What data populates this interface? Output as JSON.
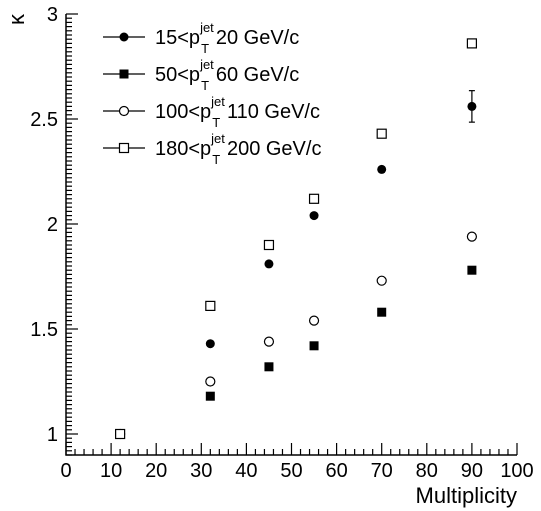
{
  "chart_data": {
    "type": "scatter",
    "xlabel": "Multiplicity",
    "ylabel": "κ",
    "xlim": [
      0,
      100
    ],
    "ylim": [
      0.9,
      3.0
    ],
    "x_ticks": [
      "0",
      "10",
      "20",
      "30",
      "40",
      "50",
      "60",
      "70",
      "80",
      "90",
      "100"
    ],
    "y_ticks": [
      "1",
      "1.5",
      "2",
      "2.5",
      "3"
    ],
    "grid": false,
    "legend_position": "top-left",
    "series": [
      {
        "name": "15<p_T^jet 20 GeV/c",
        "legend": {
          "pre": "15<p",
          "sup": "jet",
          "sub": "T",
          "post": "20 GeV/c"
        },
        "marker": "filled-circle",
        "points": [
          [
            12,
            1.0
          ],
          [
            32,
            1.43
          ],
          [
            45,
            1.81
          ],
          [
            55,
            2.04
          ],
          [
            70,
            2.26
          ],
          [
            90,
            2.56
          ]
        ],
        "error_bars": [
          [
            90,
            0.075
          ]
        ]
      },
      {
        "name": "50<p_T^jet 60 GeV/c",
        "legend": {
          "pre": "50<p",
          "sup": "jet",
          "sub": "T",
          "post": "60 GeV/c"
        },
        "marker": "filled-square",
        "points": [
          [
            12,
            1.0
          ],
          [
            32,
            1.18
          ],
          [
            45,
            1.32
          ],
          [
            55,
            1.42
          ],
          [
            70,
            1.58
          ],
          [
            90,
            1.78
          ]
        ]
      },
      {
        "name": "100<p_T^jet 110 GeV/c",
        "legend": {
          "pre": "100<p",
          "sup": "jet",
          "sub": "T",
          "post": "110 GeV/c"
        },
        "marker": "open-circle",
        "points": [
          [
            12,
            1.0
          ],
          [
            32,
            1.25
          ],
          [
            45,
            1.44
          ],
          [
            55,
            1.54
          ],
          [
            70,
            1.73
          ],
          [
            90,
            1.94
          ]
        ]
      },
      {
        "name": "180<p_T^jet 200 GeV/c",
        "legend": {
          "pre": "180<p",
          "sup": "jet",
          "sub": "T",
          "post": "200 GeV/c"
        },
        "marker": "open-square",
        "points": [
          [
            12,
            1.0
          ],
          [
            32,
            1.61
          ],
          [
            45,
            1.9
          ],
          [
            55,
            2.12
          ],
          [
            70,
            2.43
          ],
          [
            90,
            2.86
          ]
        ]
      }
    ]
  }
}
